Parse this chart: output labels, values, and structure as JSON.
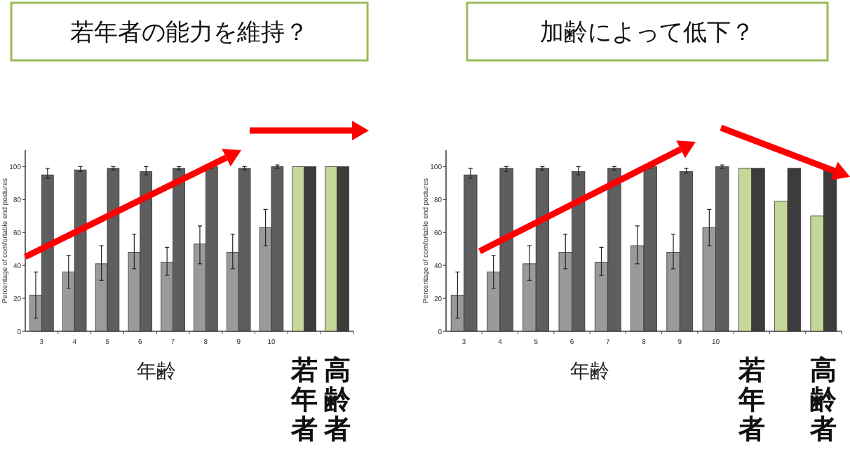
{
  "chart_data": [
    {
      "type": "bar",
      "title": "若年者の能力を維持？",
      "xlabel": "年齢",
      "ylabel": "Percentage of comfortable end postures",
      "categories": [
        "3",
        "4",
        "5",
        "6",
        "7",
        "8",
        "9",
        "10",
        "若年者",
        "高齢者"
      ],
      "ylim": [
        0,
        110
      ],
      "yticks": [
        0,
        20,
        40,
        60,
        80,
        100
      ],
      "series": [
        {
          "colors": [
            "#9a9a9a",
            "#9a9a9a",
            "#9a9a9a",
            "#9a9a9a",
            "#9a9a9a",
            "#9a9a9a",
            "#9a9a9a",
            "#9a9a9a",
            "#c5d89a",
            "#c5d89a"
          ],
          "values": [
            22,
            36,
            41,
            48,
            42,
            53,
            48,
            63,
            100,
            100
          ],
          "errors": [
            [
              8,
              36
            ],
            [
              26,
              46
            ],
            [
              31,
              52
            ],
            [
              38,
              59
            ],
            [
              34,
              51
            ],
            [
              41,
              64
            ],
            [
              38,
              59
            ],
            [
              52,
              74
            ],
            null,
            null
          ]
        },
        {
          "colors": [
            "#5e5e5e",
            "#5e5e5e",
            "#5e5e5e",
            "#5e5e5e",
            "#5e5e5e",
            "#5e5e5e",
            "#5e5e5e",
            "#5e5e5e",
            "#3c3c3c",
            "#3c3c3c"
          ],
          "values": [
            95,
            98,
            99,
            97,
            99,
            100,
            99,
            100,
            100,
            100
          ],
          "errors": [
            [
              93,
              99
            ],
            [
              97,
              100
            ],
            [
              98,
              100
            ],
            [
              95,
              100
            ],
            [
              98,
              100
            ],
            [
              99,
              101
            ],
            [
              98,
              100
            ],
            [
              99,
              101
            ],
            null,
            null
          ]
        }
      ]
    },
    {
      "type": "bar",
      "title": "加齢によって低下？",
      "xlabel": "年齢",
      "ylabel": "Percentage of comfortable end postures",
      "categories": [
        "3",
        "4",
        "5",
        "6",
        "7",
        "8",
        "9",
        "10",
        "若年者",
        null,
        "高齢者"
      ],
      "ylim": [
        0,
        110
      ],
      "yticks": [
        0,
        20,
        40,
        60,
        80,
        100
      ],
      "series": [
        {
          "colors": [
            "#9a9a9a",
            "#9a9a9a",
            "#9a9a9a",
            "#9a9a9a",
            "#9a9a9a",
            "#9a9a9a",
            "#9a9a9a",
            "#9a9a9a",
            "#c5d89a",
            "#c5d89a",
            "#c5d89a"
          ],
          "values": [
            22,
            36,
            41,
            48,
            42,
            52,
            48,
            63,
            99,
            79,
            70
          ],
          "errors": [
            [
              8,
              36
            ],
            [
              26,
              46
            ],
            [
              31,
              52
            ],
            [
              38,
              59
            ],
            [
              34,
              51
            ],
            [
              41,
              64
            ],
            [
              38,
              59
            ],
            [
              52,
              74
            ],
            null,
            null,
            null
          ]
        },
        {
          "colors": [
            "#5e5e5e",
            "#5e5e5e",
            "#5e5e5e",
            "#5e5e5e",
            "#5e5e5e",
            "#5e5e5e",
            "#5e5e5e",
            "#5e5e5e",
            "#3c3c3c",
            "#3c3c3c",
            "#3c3c3c"
          ],
          "values": [
            95,
            99,
            99,
            97,
            99,
            100,
            97,
            100,
            99,
            99,
            99
          ],
          "errors": [
            [
              93,
              99
            ],
            [
              97,
              100
            ],
            [
              98,
              100
            ],
            [
              95,
              100
            ],
            [
              98,
              100
            ],
            [
              99,
              101
            ],
            [
              96,
              99
            ],
            [
              99,
              101
            ],
            null,
            null,
            null
          ]
        }
      ]
    }
  ]
}
